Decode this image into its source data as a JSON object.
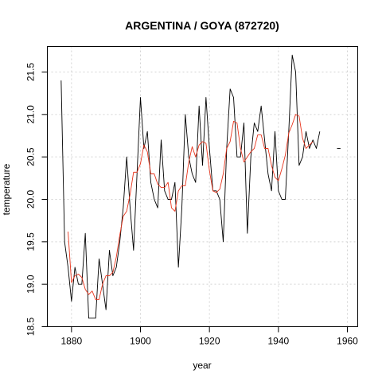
{
  "chart_data": {
    "type": "line",
    "title": "ARGENTINA / GOYA (872720)",
    "xlabel": "year",
    "ylabel": "temperature",
    "xlim": [
      1873,
      1963
    ],
    "ylim": [
      18.5,
      21.8
    ],
    "xticks": [
      1880,
      1900,
      1920,
      1940,
      1960
    ],
    "yticks": [
      18.5,
      19.0,
      19.5,
      20.0,
      20.5,
      21.0,
      21.5
    ],
    "grid": true,
    "series": [
      {
        "color": "#000000",
        "x": [
          1877,
          1878,
          1879,
          1880,
          1881,
          1882,
          1883,
          1884,
          1885,
          1886,
          1887,
          1888,
          1889,
          1890,
          1891,
          1892,
          1893,
          1894,
          1895,
          1896,
          1897,
          1898,
          1899,
          1900,
          1901,
          1902,
          1903,
          1904,
          1905,
          1906,
          1907,
          1908,
          1909,
          1910,
          1911,
          1912,
          1913,
          1914,
          1915,
          1916,
          1917,
          1918,
          1919,
          1920,
          1921,
          1922,
          1923,
          1924,
          1925,
          1926,
          1927,
          1928,
          1929,
          1930,
          1931,
          1932,
          1933,
          1934,
          1935,
          1936,
          1937,
          1938,
          1939,
          1940,
          1941,
          1942,
          1943,
          1944,
          1945,
          1946,
          1947,
          1948,
          1949,
          1950,
          1951,
          1952
        ],
        "y": [
          21.4,
          19.5,
          19.2,
          18.8,
          19.2,
          19.0,
          19.0,
          19.6,
          18.6,
          18.6,
          18.6,
          19.3,
          19.0,
          18.7,
          19.4,
          19.1,
          19.2,
          19.5,
          19.9,
          20.5,
          19.9,
          19.4,
          20.3,
          21.2,
          20.6,
          20.8,
          20.2,
          20.0,
          19.9,
          20.7,
          20.1,
          20.0,
          20.0,
          20.2,
          19.2,
          19.9,
          21.0,
          20.5,
          20.3,
          20.2,
          21.1,
          20.4,
          21.2,
          20.6,
          20.1,
          20.1,
          20.0,
          19.5,
          20.6,
          21.3,
          21.2,
          20.5,
          20.5,
          20.9,
          19.6,
          20.5,
          20.9,
          20.8,
          21.1,
          20.7,
          20.3,
          20.1,
          20.8,
          20.1,
          20.0,
          20.0,
          20.8,
          21.7,
          21.5,
          20.4,
          20.5,
          20.8,
          20.6,
          20.7,
          20.6,
          20.8
        ]
      },
      {
        "color": "#000000",
        "x": [
          1957,
          1958
        ],
        "y": [
          20.6,
          20.6
        ]
      },
      {
        "color": "#e8341c",
        "x": [
          1879,
          1880,
          1881,
          1882,
          1883,
          1884,
          1885,
          1886,
          1887,
          1888,
          1889,
          1890,
          1891,
          1892,
          1893,
          1894,
          1895,
          1896,
          1897,
          1898,
          1899,
          1900,
          1901,
          1902,
          1903,
          1904,
          1905,
          1906,
          1907,
          1908,
          1909,
          1910,
          1911,
          1912,
          1913,
          1914,
          1915,
          1916,
          1917,
          1918,
          1919,
          1920,
          1921,
          1922,
          1923,
          1924,
          1925,
          1926,
          1927,
          1928,
          1929,
          1930,
          1931,
          1932,
          1933,
          1934,
          1935,
          1936,
          1937,
          1938,
          1939,
          1940,
          1941,
          1942,
          1943,
          1944,
          1945,
          1946,
          1947,
          1948,
          1949,
          1950
        ],
        "y": [
          19.62,
          19.02,
          19.1,
          19.12,
          19.08,
          18.94,
          18.88,
          18.92,
          18.82,
          18.82,
          19.0,
          19.1,
          19.1,
          19.14,
          19.32,
          19.58,
          19.8,
          19.86,
          20.06,
          20.32,
          20.32,
          20.42,
          20.64,
          20.56,
          20.3,
          20.3,
          20.18,
          20.14,
          20.14,
          20.2,
          19.9,
          19.86,
          20.1,
          20.16,
          20.16,
          20.44,
          20.62,
          20.5,
          20.64,
          20.68,
          20.66,
          20.34,
          20.1,
          20.08,
          20.12,
          20.3,
          20.6,
          20.68,
          20.92,
          20.9,
          20.6,
          20.44,
          20.5,
          20.56,
          20.6,
          20.76,
          20.76,
          20.6,
          20.6,
          20.4,
          20.26,
          20.22,
          20.36,
          20.52,
          20.78,
          20.88,
          21.0,
          20.98,
          20.72,
          20.6,
          20.64,
          20.68
        ]
      }
    ]
  }
}
